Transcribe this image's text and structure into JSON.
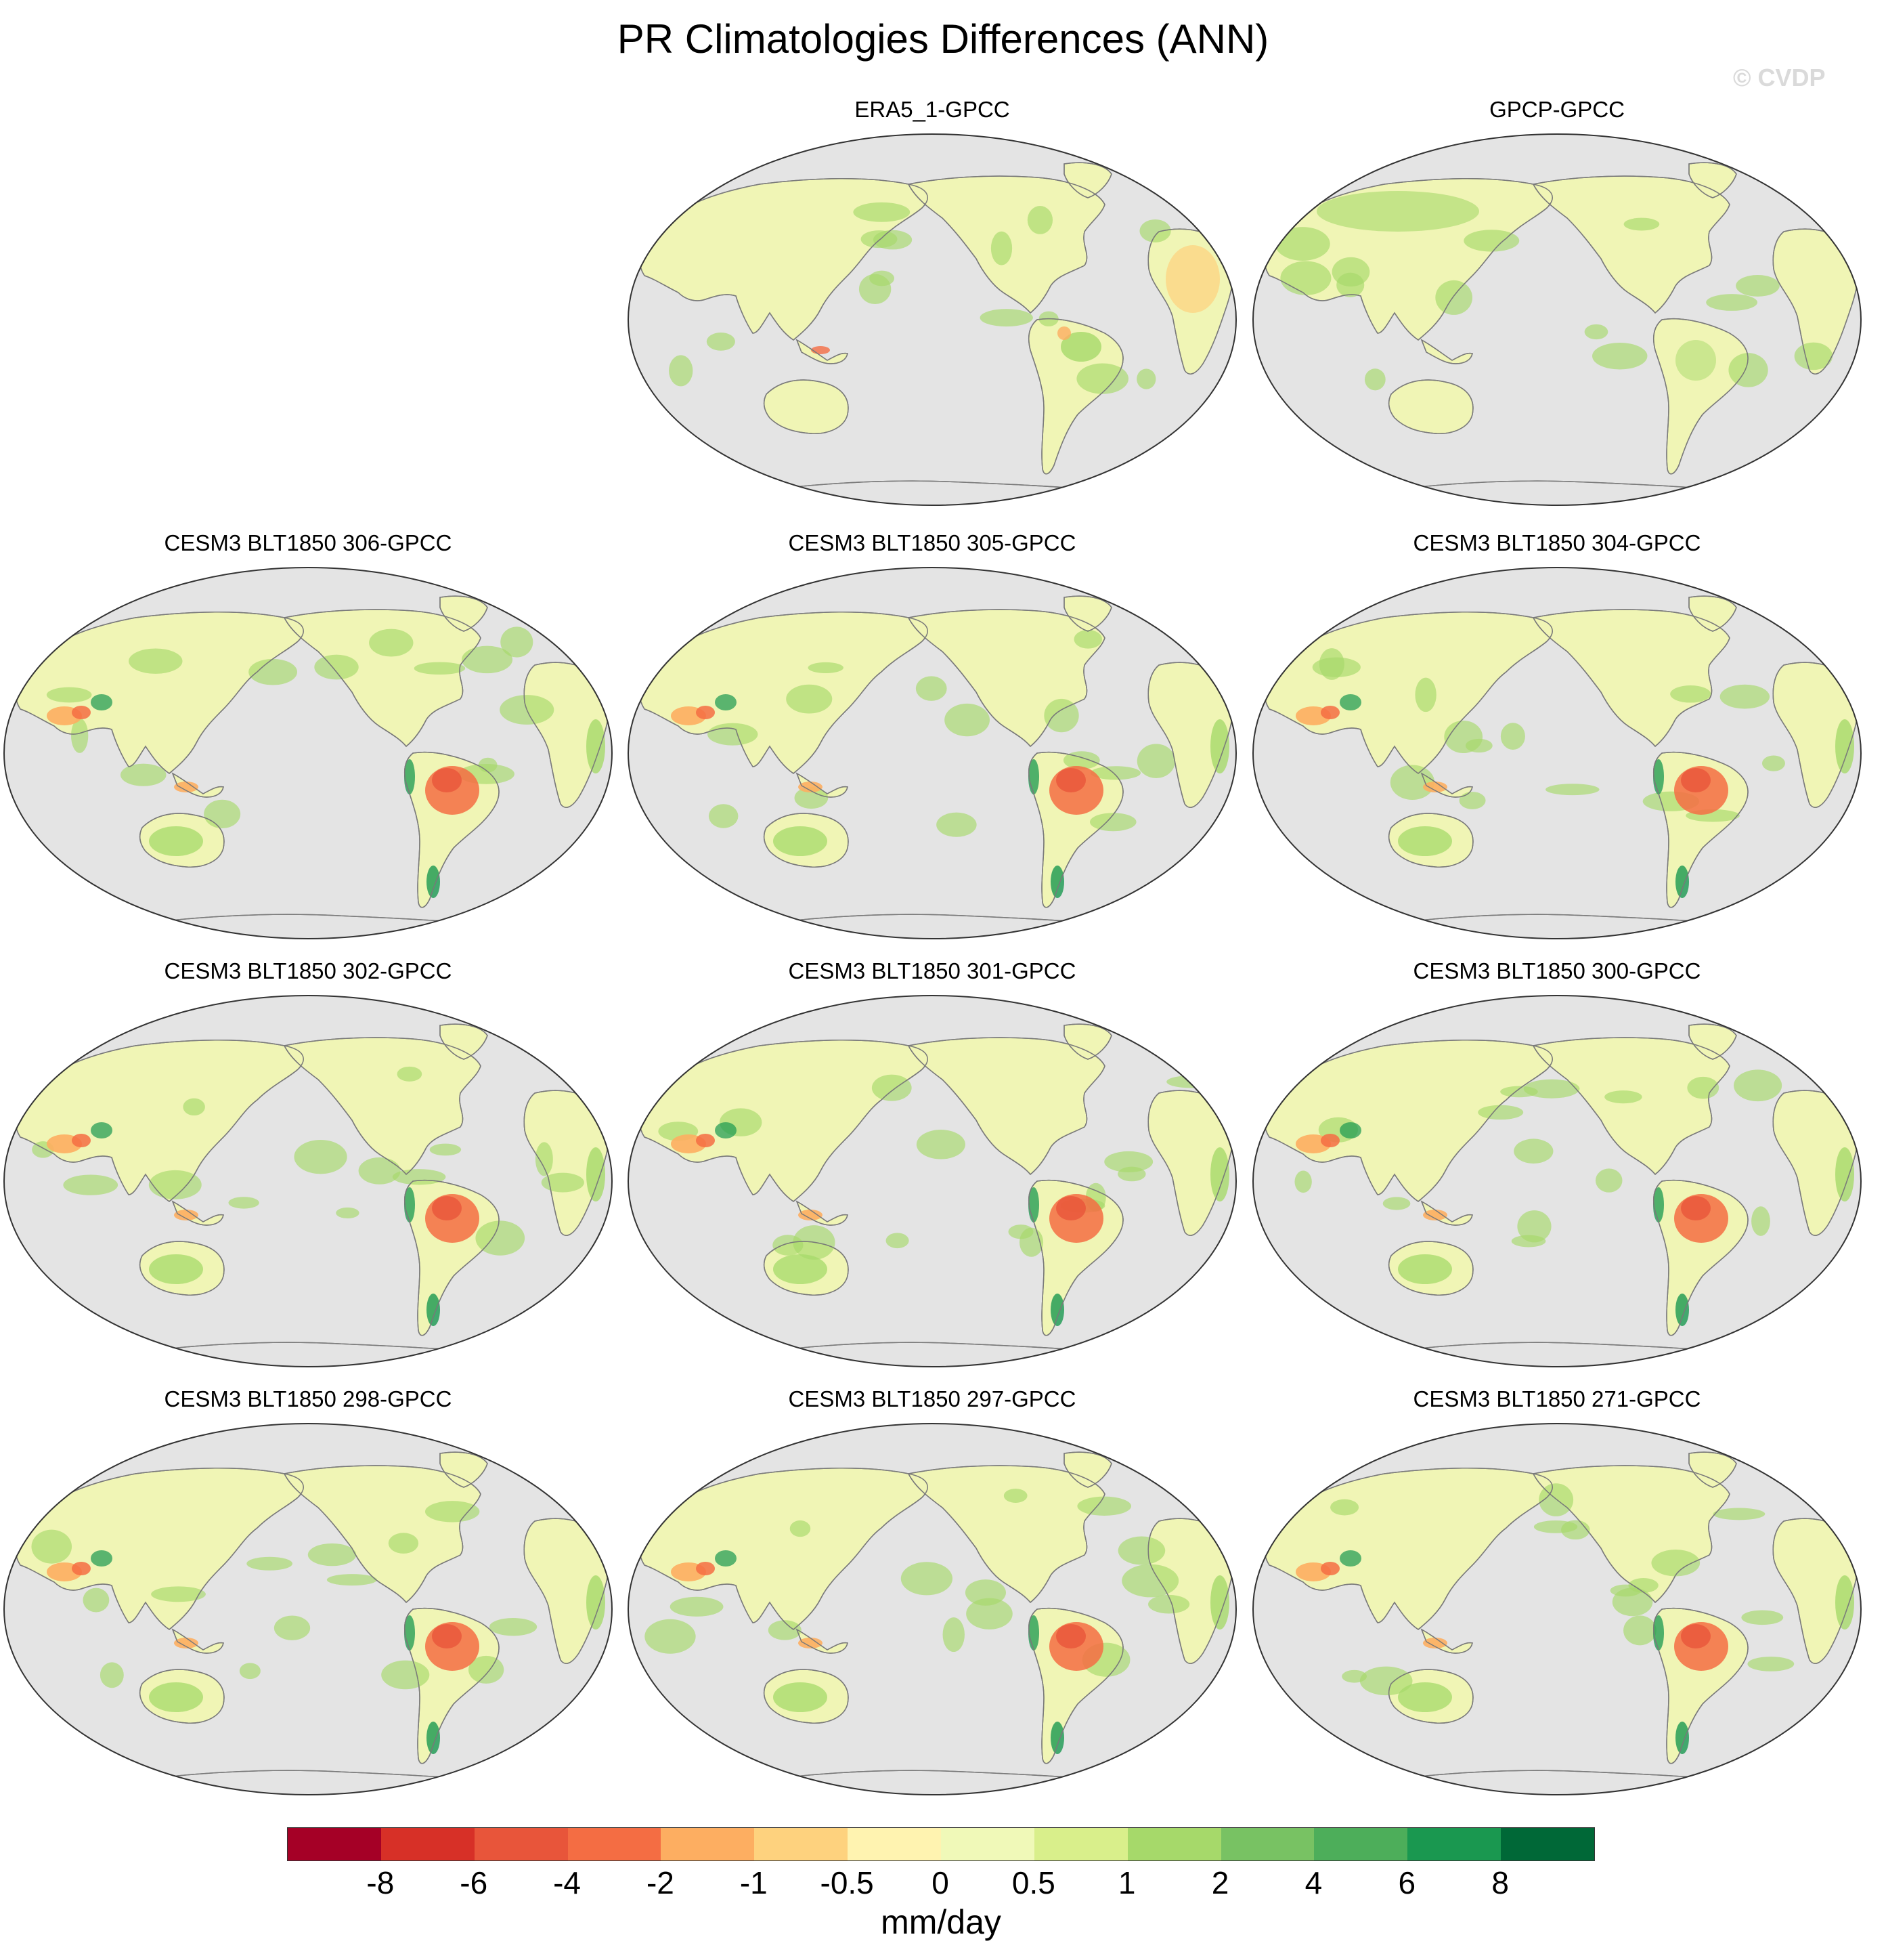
{
  "title": "PR Climatologies Differences (ANN)",
  "watermark": "© CVDP",
  "panels": [
    {
      "title": "ERA5_1-GPCC"
    },
    {
      "title": "GPCP-GPCC"
    },
    {
      "title": "CESM3 BLT1850 306-GPCC"
    },
    {
      "title": "CESM3 BLT1850 305-GPCC"
    },
    {
      "title": "CESM3 BLT1850 304-GPCC"
    },
    {
      "title": "CESM3 BLT1850 302-GPCC"
    },
    {
      "title": "CESM3 BLT1850 301-GPCC"
    },
    {
      "title": "CESM3 BLT1850 300-GPCC"
    },
    {
      "title": "CESM3 BLT1850 298-GPCC"
    },
    {
      "title": "CESM3 BLT1850 297-GPCC"
    },
    {
      "title": "CESM3 BLT1850 271-GPCC"
    }
  ],
  "colorbar": {
    "units": "mm/day",
    "labels": [
      "-8",
      "-6",
      "-4",
      "-2",
      "-1",
      "-0.5",
      "0",
      "0.5",
      "1",
      "2",
      "4",
      "6",
      "8"
    ],
    "colors": [
      "#a50026",
      "#d73027",
      "#e8553a",
      "#f46d43",
      "#fdae61",
      "#fed27e",
      "#fff3b0",
      "#f0f9b8",
      "#d9ef8b",
      "#a6d96a",
      "#78c263",
      "#4dae5a",
      "#1a9850",
      "#006837"
    ]
  },
  "map_style": {
    "ocean": "#e4e4e4",
    "coastline": "#7a7a7a",
    "land_base": "#f0f5b5",
    "wet_bias": "#a6d96a",
    "strong_wet_bias": "#1a9850",
    "dry_bias": "#fdae61",
    "strong_dry_bias": "#f46d43"
  }
}
